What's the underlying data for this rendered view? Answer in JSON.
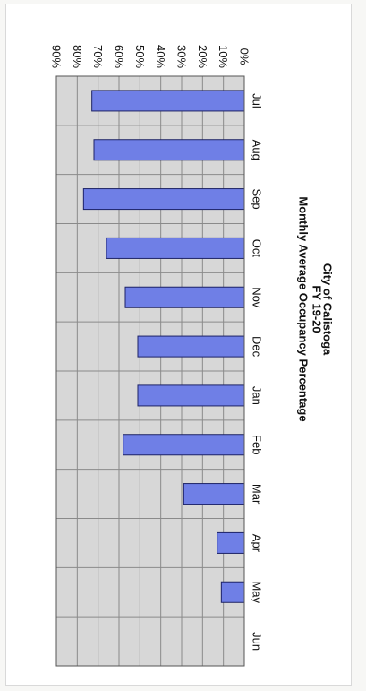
{
  "chart_data": {
    "type": "bar",
    "title": "City of Calistoga",
    "subtitle": "FY 19-20",
    "subtitle2": "Monthly Average Occupancy Percentage",
    "categories": [
      "Jul",
      "Aug",
      "Sep",
      "Oct",
      "Nov",
      "Dec",
      "Jan",
      "Feb",
      "Mar",
      "Apr",
      "May",
      "Jun"
    ],
    "values": [
      73,
      72,
      77,
      66,
      57,
      51,
      51,
      58,
      29,
      13,
      11,
      0
    ],
    "yticks": [
      "0%",
      "10%",
      "20%",
      "30%",
      "40%",
      "50%",
      "60%",
      "70%",
      "80%",
      "90%"
    ],
    "ylim": [
      0,
      90
    ],
    "xlabel": "",
    "ylabel": "",
    "grid": true,
    "orientation": "rotated-90-clockwise",
    "colors": {
      "bar": "#6f7fe6",
      "bar_edge": "#1c2266",
      "plot_bg": "#d7d7d7",
      "grid": "#8a8a8a"
    }
  }
}
